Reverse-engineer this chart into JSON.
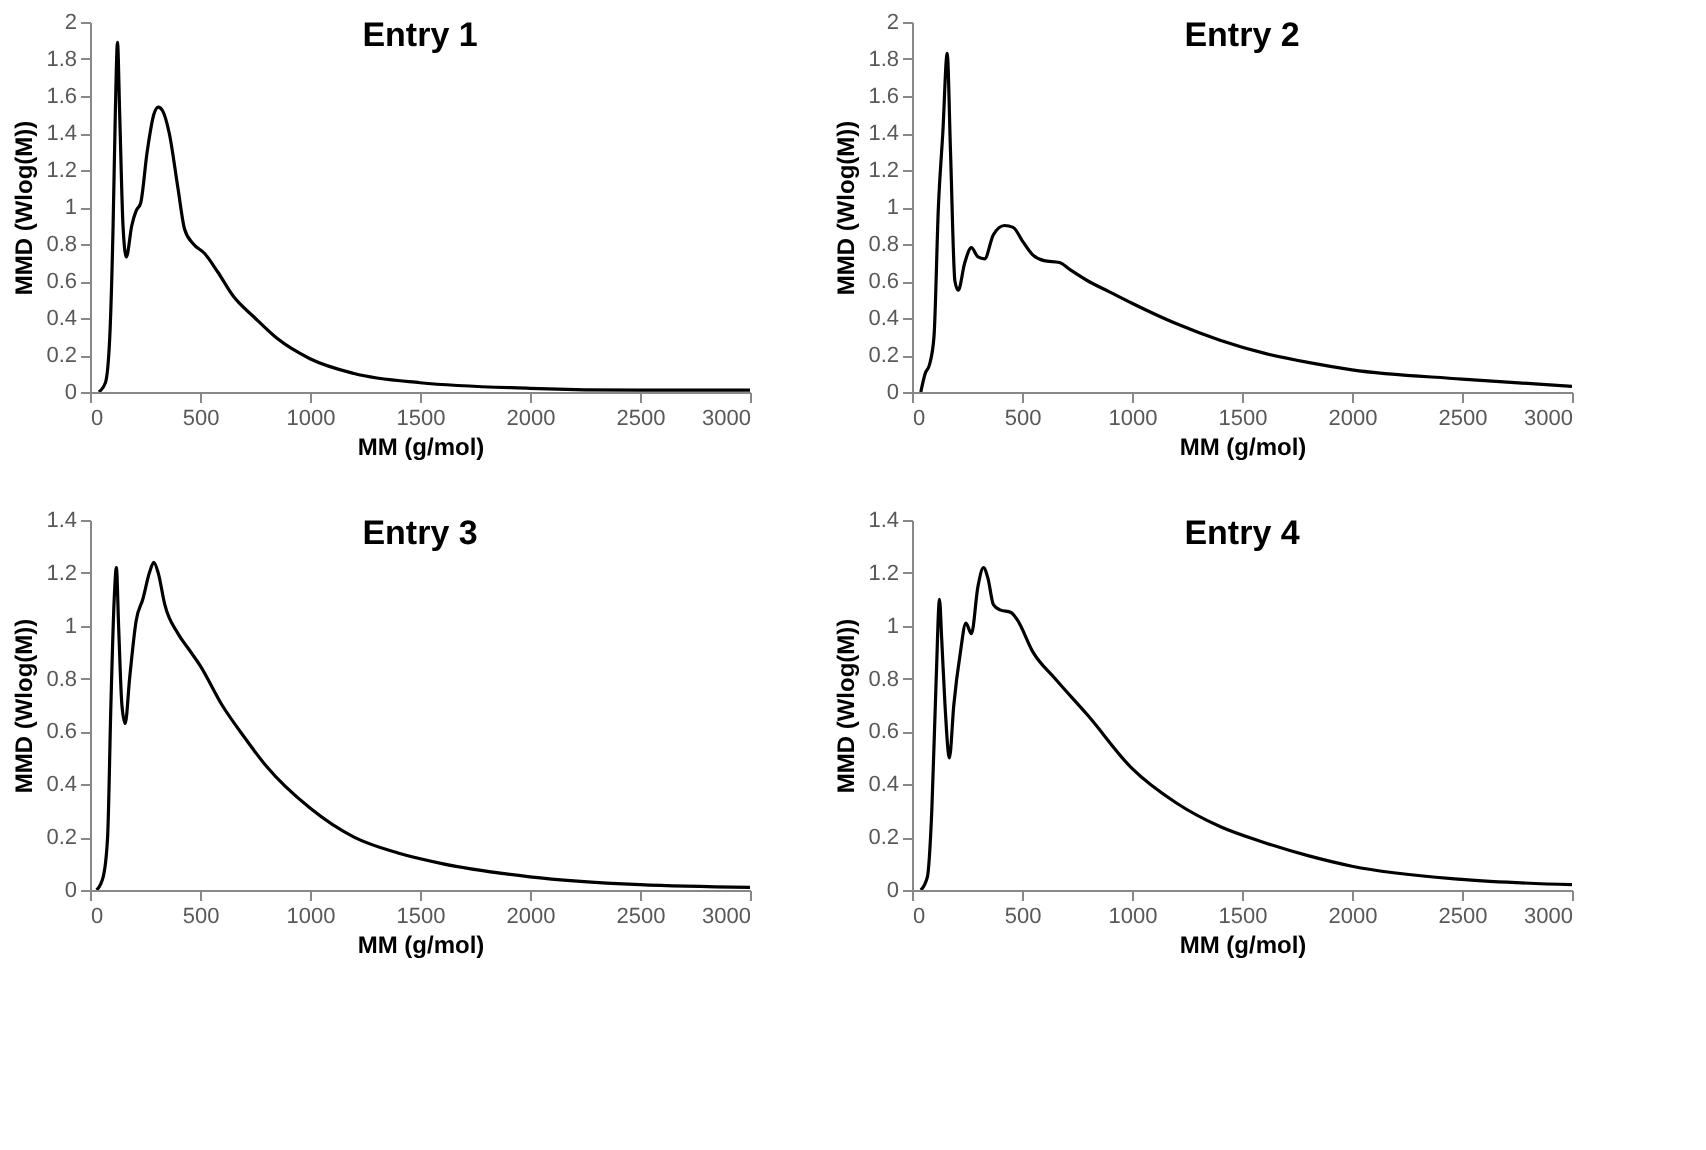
{
  "chart_data": [
    {
      "type": "line",
      "title": "Entry 1",
      "xlabel": "MM (g/mol)",
      "ylabel": "MMD (Wlog(M))",
      "xlim": [
        0,
        3000
      ],
      "xticks": [
        0,
        500,
        1000,
        1500,
        2000,
        2500,
        3000
      ],
      "ylim": [
        0,
        2
      ],
      "yticks": [
        0,
        0.2,
        0.4,
        0.6,
        0.8,
        1,
        1.2,
        1.4,
        1.6,
        1.8,
        2
      ],
      "grid": false,
      "marker": "none",
      "line_style": "solid",
      "series": [
        {
          "color": "#000000",
          "x": [
            40,
            70,
            90,
            105,
            115,
            125,
            135,
            150,
            165,
            190,
            210,
            230,
            260,
            290,
            310,
            330,
            360,
            400,
            430,
            470,
            520,
            580,
            650,
            750,
            850,
            1000,
            1200,
            1500,
            2000,
            2500,
            3000
          ],
          "values": [
            0,
            0.05,
            0.3,
            0.9,
            1.5,
            1.89,
            1.5,
            0.9,
            0.73,
            0.9,
            0.98,
            1.02,
            1.3,
            1.5,
            1.54,
            1.52,
            1.4,
            1.1,
            0.88,
            0.8,
            0.75,
            0.65,
            0.52,
            0.4,
            0.29,
            0.18,
            0.1,
            0.05,
            0.02,
            0.01,
            0.01
          ]
        }
      ]
    },
    {
      "type": "line",
      "title": "Entry 2",
      "xlabel": "MM (g/mol)",
      "ylabel": "MMD (Wlog(M))",
      "xlim": [
        0,
        3000
      ],
      "xticks": [
        0,
        500,
        1000,
        1500,
        2000,
        2500,
        3000
      ],
      "ylim": [
        0,
        2
      ],
      "yticks": [
        0,
        0.2,
        0.4,
        0.6,
        0.8,
        1,
        1.2,
        1.4,
        1.6,
        1.8,
        2
      ],
      "grid": false,
      "marker": "none",
      "line_style": "solid",
      "series": [
        {
          "color": "#000000",
          "x": [
            40,
            60,
            80,
            100,
            120,
            140,
            160,
            175,
            195,
            210,
            240,
            270,
            300,
            330,
            370,
            420,
            460,
            500,
            550,
            600,
            670,
            720,
            800,
            900,
            1000,
            1200,
            1400,
            1600,
            1800,
            2000,
            2500,
            3000
          ],
          "values": [
            0,
            0.1,
            0.15,
            0.3,
            1.0,
            1.4,
            1.83,
            1.3,
            0.6,
            0.55,
            0.7,
            0.78,
            0.73,
            0.72,
            0.85,
            0.9,
            0.89,
            0.82,
            0.74,
            0.71,
            0.7,
            0.66,
            0.6,
            0.54,
            0.48,
            0.37,
            0.28,
            0.21,
            0.16,
            0.12,
            0.07,
            0.03
          ]
        }
      ]
    },
    {
      "type": "line",
      "title": "Entry 3",
      "xlabel": "MM (g/mol)",
      "ylabel": "MMD (Wlog(M))",
      "xlim": [
        0,
        3000
      ],
      "xticks": [
        0,
        500,
        1000,
        1500,
        2000,
        2500,
        3000
      ],
      "ylim": [
        0,
        1.4
      ],
      "yticks": [
        0,
        0.2,
        0.4,
        0.6,
        0.8,
        1,
        1.2,
        1.4
      ],
      "grid": false,
      "marker": "none",
      "line_style": "solid",
      "series": [
        {
          "color": "#000000",
          "x": [
            30,
            60,
            80,
            95,
            110,
            120,
            130,
            145,
            160,
            180,
            210,
            240,
            270,
            290,
            310,
            340,
            400,
            450,
            500,
            600,
            700,
            800,
            1000,
            1200,
            1400,
            1600,
            2000,
            2500,
            3000
          ],
          "values": [
            0,
            0.05,
            0.2,
            0.7,
            1.1,
            1.22,
            1.0,
            0.7,
            0.63,
            0.8,
            1.02,
            1.1,
            1.2,
            1.24,
            1.2,
            1.08,
            0.97,
            0.91,
            0.85,
            0.7,
            0.58,
            0.47,
            0.31,
            0.2,
            0.14,
            0.1,
            0.05,
            0.02,
            0.01
          ]
        }
      ]
    },
    {
      "type": "line",
      "title": "Entry 4",
      "xlabel": "MM (g/mol)",
      "ylabel": "MMD (Wlog(M))",
      "xlim": [
        0,
        3000
      ],
      "xticks": [
        0,
        500,
        1000,
        1500,
        2000,
        2500,
        3000
      ],
      "ylim": [
        0,
        1.4
      ],
      "yticks": [
        0,
        0.2,
        0.4,
        0.6,
        0.8,
        1,
        1.2,
        1.4
      ],
      "grid": false,
      "marker": "none",
      "line_style": "solid",
      "series": [
        {
          "color": "#000000",
          "x": [
            40,
            70,
            90,
            110,
            125,
            135,
            150,
            170,
            190,
            220,
            245,
            270,
            300,
            325,
            345,
            370,
            400,
            450,
            480,
            550,
            650,
            800,
            1000,
            1200,
            1400,
            1600,
            1800,
            2000,
            2500,
            3000
          ],
          "values": [
            0,
            0.05,
            0.3,
            0.8,
            1.1,
            0.95,
            0.7,
            0.5,
            0.7,
            0.9,
            1.01,
            0.97,
            1.15,
            1.22,
            1.18,
            1.08,
            1.06,
            1.05,
            1.02,
            0.9,
            0.8,
            0.66,
            0.46,
            0.33,
            0.24,
            0.18,
            0.13,
            0.09,
            0.04,
            0.02
          ]
        }
      ]
    }
  ]
}
